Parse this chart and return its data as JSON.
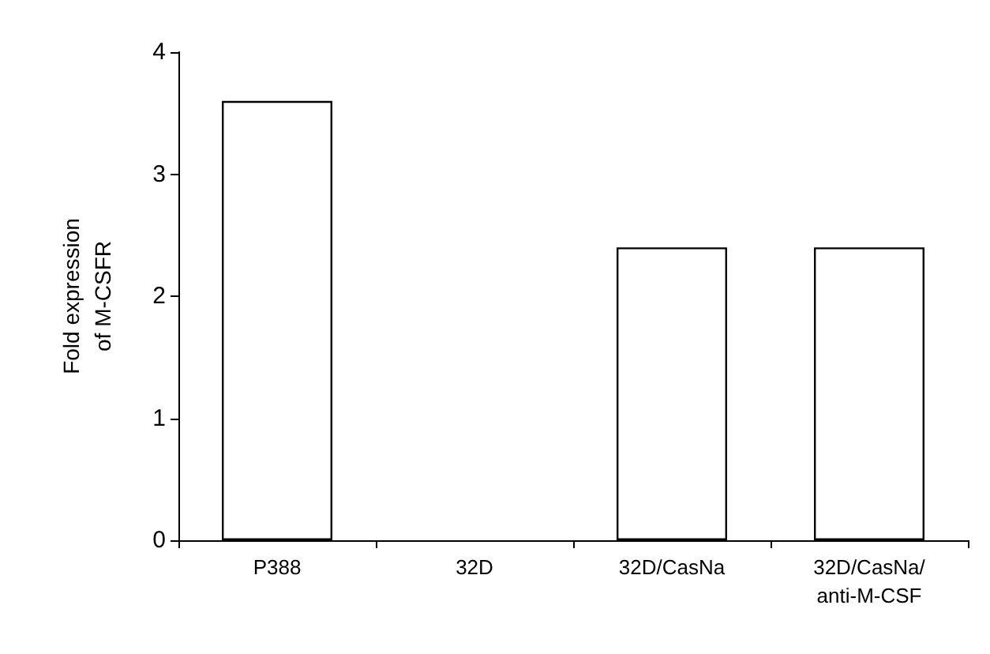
{
  "chart_data": {
    "type": "bar",
    "ylabel": "Fold expression\nof M-CSFR",
    "categories": [
      "P388",
      "32D",
      "32D/CasNa",
      "32D/CasNa/\nanti-M-CSF"
    ],
    "values": [
      3.6,
      0,
      2.4,
      2.4
    ],
    "color": "#ffffff",
    "ylim": [
      0,
      4
    ],
    "yticks": [
      0,
      1,
      2,
      3,
      4
    ],
    "grid": false
  }
}
